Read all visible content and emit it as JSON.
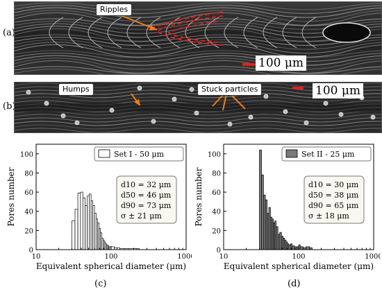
{
  "panels": {
    "a": {
      "label": "(a)",
      "callouts": [
        "Ripples"
      ],
      "scale_bar": "100 μm"
    },
    "b": {
      "label": "(b)",
      "callouts": [
        "Humps",
        "Stuck particles"
      ],
      "scale_bar": "100 μm"
    },
    "c": {
      "label": "(c)"
    },
    "d": {
      "label": "(d)"
    }
  },
  "colors": {
    "annotation_arrow": "#f07d1a",
    "ripple_dash": "#e0201b",
    "scale_bar": "#e0201b",
    "bar_set1": "#ffffff",
    "bar_set2": "#7a7a7a"
  },
  "chart_data": [
    {
      "type": "bar",
      "xlabel": "Equivalent spherical diameter (μm)",
      "ylabel": "Pores number",
      "x_scale": "log",
      "xlim": [
        10,
        1000
      ],
      "ylim": [
        0,
        110
      ],
      "xticks": [
        10,
        100,
        1000
      ],
      "yticks": [
        0,
        20,
        40,
        60,
        80,
        100
      ],
      "legend": "Set I - 50 μm",
      "legend_position": "top-right",
      "bar_color": "#ffffff",
      "bins_x": [
        30,
        33,
        36,
        39,
        42,
        45,
        48,
        51,
        54,
        57,
        60,
        63,
        66,
        69,
        72,
        75,
        78,
        81,
        84,
        87,
        90,
        93,
        96,
        100,
        110,
        120,
        130,
        150,
        170,
        200,
        220
      ],
      "values": [
        30,
        42,
        59,
        60,
        54,
        46,
        56,
        58,
        51,
        46,
        38,
        32,
        28,
        22,
        18,
        12,
        10,
        8,
        6,
        5,
        4,
        3,
        3,
        3,
        2,
        2,
        1,
        1,
        1,
        1,
        1
      ],
      "stats": [
        "d10 = 32 μm",
        "d50 = 46 μm",
        "d90 = 73 μm",
        "σ ± 21 μm"
      ]
    },
    {
      "type": "bar",
      "xlabel": "Equivalent spherical diameter (μm)",
      "ylabel": "Pores number",
      "x_scale": "log",
      "xlim": [
        10,
        1000
      ],
      "ylim": [
        0,
        110
      ],
      "xticks": [
        10,
        100,
        1000
      ],
      "yticks": [
        0,
        20,
        40,
        60,
        80,
        100
      ],
      "legend": "Set II - 25 μm",
      "legend_position": "top-right",
      "bar_color": "#7a7a7a",
      "bins_x": [
        30,
        32,
        34,
        36,
        38,
        40,
        42,
        44,
        46,
        48,
        50,
        53,
        56,
        59,
        62,
        65,
        68,
        71,
        74,
        78,
        82,
        88,
        95,
        100,
        105,
        115,
        125,
        140
      ],
      "values": [
        104,
        78,
        57,
        52,
        38,
        44,
        34,
        32,
        28,
        30,
        24,
        16,
        18,
        14,
        12,
        10,
        8,
        6,
        5,
        6,
        4,
        3,
        3,
        5,
        3,
        2,
        3,
        2
      ],
      "stats": [
        "d10 = 30 μm",
        "d50 = 38 μm",
        "d90 = 65 μm",
        "σ ± 18 μm"
      ]
    }
  ]
}
